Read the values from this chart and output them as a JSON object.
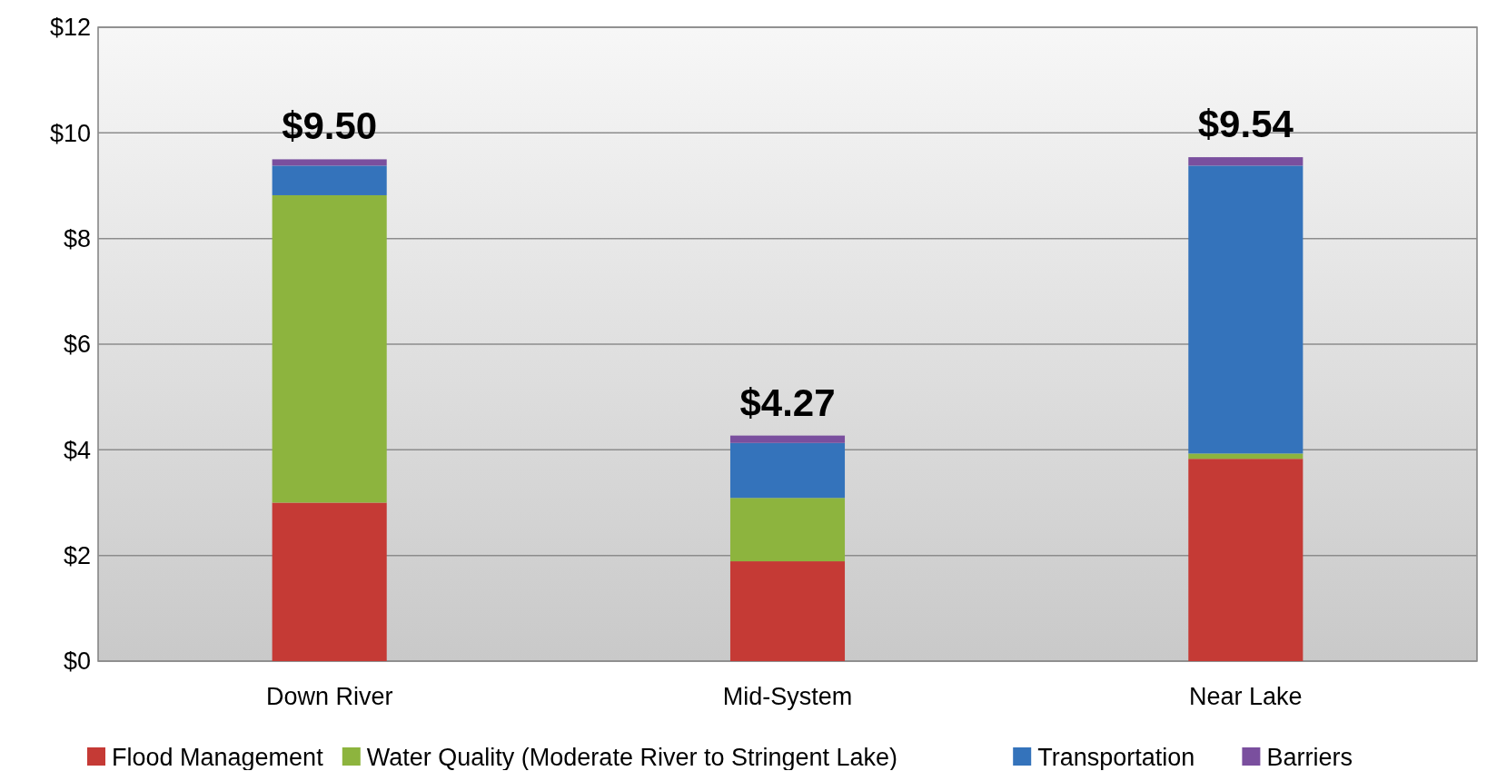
{
  "chart_data": {
    "type": "bar",
    "stacked": true,
    "categories": [
      "Down River",
      "Mid-System",
      "Near Lake"
    ],
    "series": [
      {
        "name": "Flood Management",
        "color": "#c53a35",
        "values": [
          3.0,
          1.89,
          3.83
        ]
      },
      {
        "name": "Water Quality (Moderate River to Stringent Lake)",
        "color": "#8db43e",
        "values": [
          5.82,
          1.2,
          0.1
        ]
      },
      {
        "name": "Transportation",
        "color": "#3473bb",
        "values": [
          0.56,
          1.04,
          5.45
        ]
      },
      {
        "name": "Barriers",
        "color": "#7a4f9e",
        "values": [
          0.12,
          0.14,
          0.16
        ]
      }
    ],
    "totals": [
      "$9.50",
      "$4.27",
      "$9.54"
    ],
    "ylim": [
      0,
      12
    ],
    "yticks": [
      {
        "value": 0,
        "label": "$0"
      },
      {
        "value": 2,
        "label": "$2"
      },
      {
        "value": 4,
        "label": "$4"
      },
      {
        "value": 6,
        "label": "$6"
      },
      {
        "value": 8,
        "label": "$8"
      },
      {
        "value": 10,
        "label": "$10"
      },
      {
        "value": 12,
        "label": "$12"
      }
    ],
    "grid": "y",
    "legend": "bottom"
  }
}
